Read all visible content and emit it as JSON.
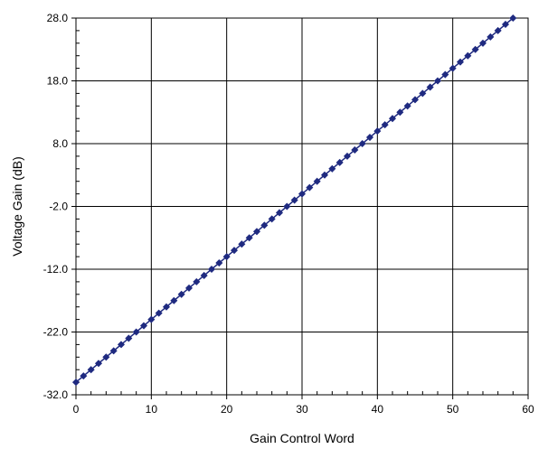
{
  "chart_data": {
    "type": "scatter",
    "title": "",
    "xlabel": "Gain Control Word",
    "ylabel": "Voltage Gain (dB)",
    "xlim": [
      0,
      60
    ],
    "ylim": [
      -32,
      28
    ],
    "x_ticks": [
      0,
      10,
      20,
      30,
      40,
      50,
      60
    ],
    "x_tick_labels": [
      "0",
      "10",
      "20",
      "30",
      "40",
      "50",
      "60"
    ],
    "y_ticks": [
      -32,
      -22,
      -12,
      -2,
      8,
      18,
      28
    ],
    "y_tick_labels": [
      "-32.0",
      "-22.0",
      "-12.0",
      "-2.0",
      "8.0",
      "18.0",
      "28.0"
    ],
    "x_minor_step": 2,
    "y_minor_step": 2,
    "grid": true,
    "legend": "none",
    "series": [
      {
        "color": "#1f2a80",
        "marker": "diamond",
        "line": true,
        "x": [
          0,
          1,
          2,
          3,
          4,
          5,
          6,
          7,
          8,
          9,
          10,
          11,
          12,
          13,
          14,
          15,
          16,
          17,
          18,
          19,
          20,
          21,
          22,
          23,
          24,
          25,
          26,
          27,
          28,
          29,
          30,
          31,
          32,
          33,
          34,
          35,
          36,
          37,
          38,
          39,
          40,
          41,
          42,
          43,
          44,
          45,
          46,
          47,
          48,
          49,
          50,
          51,
          52,
          53,
          54,
          55,
          56,
          57,
          58
        ],
        "y": [
          -30,
          -29,
          -28,
          -27,
          -26,
          -25,
          -24,
          -23,
          -22,
          -21,
          -20,
          -19,
          -18,
          -17,
          -16,
          -15,
          -14,
          -13,
          -12,
          -11,
          -10,
          -9,
          -8,
          -7,
          -6,
          -5,
          -4,
          -3,
          -2,
          -1,
          0,
          1,
          2,
          3,
          4,
          5,
          6,
          7,
          8,
          9,
          10,
          11,
          12,
          13,
          14,
          15,
          16,
          17,
          18,
          19,
          20,
          21,
          22,
          23,
          24,
          25,
          26,
          27,
          28
        ]
      }
    ]
  }
}
